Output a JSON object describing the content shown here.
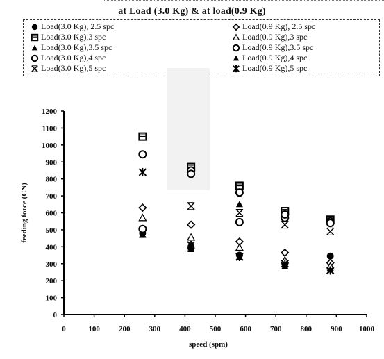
{
  "legend_title": "at Load (3.0 Kg) & at load(0.9 Kg)",
  "chart_data": {
    "type": "scatter",
    "xlabel": "speed (spm)",
    "ylabel": "feeding force (CN)",
    "xlim": [
      0,
      1000
    ],
    "ylim": [
      0,
      1200
    ],
    "xticks": [
      "0",
      "100",
      "200",
      "300",
      "400",
      "500",
      "600",
      "700",
      "800",
      "900",
      "1000"
    ],
    "yticks": [
      "0",
      "100",
      "200",
      "300",
      "400",
      "500",
      "600",
      "700",
      "800",
      "900",
      "1000",
      "1100",
      "1200"
    ],
    "grid": false,
    "legend_position": "top",
    "series": [
      {
        "name": "Load(3.0 Kg), 2.5 spc",
        "marker": "filled-circle",
        "points": [
          [
            260,
            480
          ],
          [
            420,
            400
          ],
          [
            580,
            350
          ],
          [
            730,
            300
          ],
          [
            880,
            345
          ]
        ]
      },
      {
        "name": "Load(3.0 Kg),3 spc",
        "marker": "hatched-square",
        "points": [
          [
            260,
            1050
          ],
          [
            420,
            870
          ],
          [
            580,
            760
          ],
          [
            730,
            610
          ],
          [
            880,
            560
          ]
        ]
      },
      {
        "name": "Load(3.0 Kg),3.5 spc",
        "marker": "filled-triangle",
        "points": [
          [
            260,
            485
          ],
          [
            420,
            395
          ],
          [
            580,
            650
          ],
          [
            730,
            300
          ],
          [
            880,
            275
          ]
        ]
      },
      {
        "name": "Load(3.0 Kg),4 spc",
        "marker": "open-circle",
        "points": [
          [
            260,
            945
          ],
          [
            420,
            850
          ],
          [
            580,
            720
          ],
          [
            730,
            570
          ],
          [
            880,
            550
          ]
        ]
      },
      {
        "name": "Load(3.0 Kg),5 spc",
        "marker": "x-star",
        "points": [
          [
            260,
            475
          ],
          [
            420,
            640
          ],
          [
            580,
            600
          ],
          [
            730,
            530
          ],
          [
            880,
            490
          ]
        ]
      },
      {
        "name": "Load(0.9 Kg), 2.5 spc",
        "marker": "open-diamond",
        "points": [
          [
            260,
            630
          ],
          [
            420,
            530
          ],
          [
            580,
            430
          ],
          [
            730,
            365
          ],
          [
            880,
            305
          ]
        ]
      },
      {
        "name": "Load(0.9 Kg),3 spc",
        "marker": "open-triangle",
        "points": [
          [
            260,
            570
          ],
          [
            420,
            455
          ],
          [
            580,
            395
          ],
          [
            730,
            320
          ],
          [
            880,
            285
          ]
        ]
      },
      {
        "name": "Load(0.9 Kg),3.5 spc",
        "marker": "open-circle",
        "points": [
          [
            260,
            505
          ],
          [
            420,
            830
          ],
          [
            580,
            545
          ],
          [
            730,
            590
          ],
          [
            880,
            540
          ]
        ]
      },
      {
        "name": "Load(0.9 Kg),4 spc",
        "marker": "filled-triangle",
        "points": [
          [
            260,
            470
          ],
          [
            420,
            385
          ],
          [
            580,
            340
          ],
          [
            730,
            285
          ],
          [
            880,
            265
          ]
        ]
      },
      {
        "name": "Load(0.9 Kg),5 spc",
        "marker": "asterisk",
        "points": [
          [
            260,
            840
          ],
          [
            420,
            410
          ],
          [
            580,
            340
          ],
          [
            730,
            300
          ],
          [
            880,
            260
          ]
        ]
      }
    ]
  }
}
